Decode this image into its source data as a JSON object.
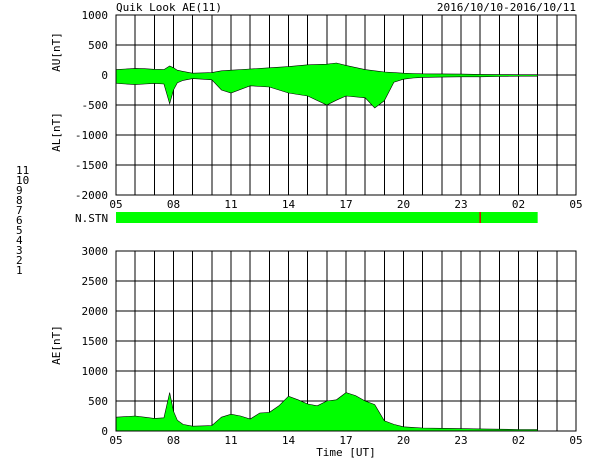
{
  "header": {
    "title": "Quik Look AE(11)",
    "date_range": "2016/10/10-2016/10/11"
  },
  "x_axis": {
    "tick_labels": [
      "05",
      "08",
      "11",
      "14",
      "17",
      "20",
      "23",
      "02",
      "05"
    ],
    "label": "Time [UT]"
  },
  "station_legend": [
    {
      "label": "11",
      "color": "#00c8c8"
    },
    {
      "label": "10",
      "color": "#d000d0"
    },
    {
      "label": "9",
      "color": "#0000c0"
    },
    {
      "label": "8",
      "color": "#e8e800"
    },
    {
      "label": "7",
      "color": "#80d080"
    },
    {
      "label": "6",
      "color": "#e00000"
    },
    {
      "label": "5",
      "color": "#c8c8c8"
    },
    {
      "label": "4",
      "color": "#a0a0a0"
    },
    {
      "label": "3",
      "color": "#00a0a0"
    },
    {
      "label": "2",
      "color": "#a000a0"
    },
    {
      "label": "1",
      "color": "#0000a0"
    }
  ],
  "nstn": {
    "label": "N.STN",
    "bar_color": "#00ff00",
    "marker_color": "#e00000",
    "coverage_hours": [
      0,
      22
    ],
    "marker_hour": 19
  },
  "chart_data": [
    {
      "type": "area",
      "title": "AU/AL",
      "ylabel_upper": "AU[nT]",
      "ylabel_lower": "AL[nT]",
      "ylim": [
        -2000,
        1000
      ],
      "yticks": [
        1000,
        500,
        0,
        -500,
        -1000,
        -1500,
        -2000
      ],
      "xlim_hours": [
        0,
        24
      ],
      "fill_color": "#00ff00",
      "grid": true,
      "series": [
        {
          "name": "AU",
          "x_hours": [
            0,
            0.5,
            1,
            1.5,
            2,
            2.5,
            2.8,
            3,
            3.2,
            3.5,
            4,
            5,
            5.5,
            6,
            7,
            8,
            9,
            10,
            11,
            11.5,
            12,
            13,
            13.5,
            14,
            14.5,
            15,
            15.5,
            16,
            17,
            18,
            19,
            20,
            21,
            22
          ],
          "values": [
            90,
            100,
            110,
            105,
            95,
            90,
            150,
            120,
            80,
            60,
            30,
            40,
            70,
            80,
            100,
            120,
            140,
            170,
            180,
            200,
            160,
            90,
            70,
            50,
            40,
            30,
            25,
            20,
            18,
            15,
            10,
            8,
            5,
            5
          ]
        },
        {
          "name": "AL",
          "x_hours": [
            0,
            0.5,
            1,
            1.5,
            2,
            2.5,
            2.8,
            3,
            3.2,
            3.5,
            4,
            5,
            5.5,
            6,
            7,
            8,
            9,
            10,
            11,
            11.5,
            12,
            13,
            13.5,
            14,
            14.5,
            15,
            15.5,
            16,
            17,
            18,
            19,
            20,
            21,
            22
          ],
          "values": [
            -140,
            -150,
            -160,
            -150,
            -140,
            -150,
            -480,
            -250,
            -130,
            -90,
            -60,
            -80,
            -250,
            -300,
            -180,
            -200,
            -300,
            -350,
            -500,
            -420,
            -350,
            -380,
            -550,
            -430,
            -120,
            -70,
            -50,
            -40,
            -35,
            -30,
            -30,
            -25,
            -20,
            -20
          ]
        }
      ]
    },
    {
      "type": "area",
      "title": "AE",
      "ylabel": "AE[nT]",
      "xlabel": "Time [UT]",
      "ylim": [
        0,
        3000
      ],
      "yticks": [
        3000,
        2500,
        2000,
        1500,
        1000,
        500,
        0
      ],
      "xlim_hours": [
        0,
        24
      ],
      "fill_color": "#00ff00",
      "grid": true,
      "series": [
        {
          "name": "AE",
          "x_hours": [
            0,
            0.5,
            1,
            1.5,
            2,
            2.5,
            2.8,
            3,
            3.2,
            3.5,
            4,
            5,
            5.5,
            6,
            6.5,
            7,
            7.5,
            8,
            8.5,
            9,
            9.5,
            10,
            10.5,
            11,
            11.5,
            12,
            12.5,
            13,
            13.5,
            14,
            14.5,
            15,
            15.5,
            16,
            17,
            18,
            19,
            20,
            21,
            22
          ],
          "values": [
            230,
            240,
            250,
            230,
            210,
            220,
            640,
            330,
            180,
            110,
            80,
            90,
            230,
            280,
            250,
            200,
            300,
            310,
            420,
            580,
            520,
            450,
            420,
            500,
            520,
            640,
            590,
            500,
            440,
            170,
            110,
            70,
            60,
            50,
            45,
            40,
            35,
            30,
            25,
            25
          ]
        }
      ]
    }
  ]
}
